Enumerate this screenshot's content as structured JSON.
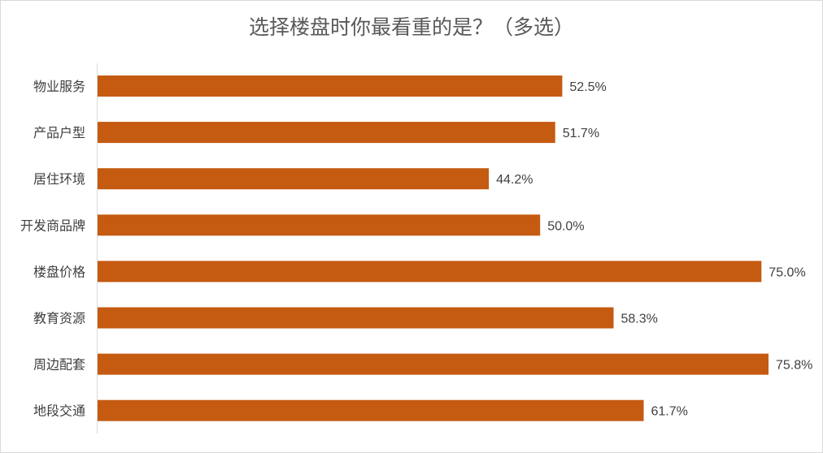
{
  "chart_data": {
    "type": "bar",
    "orientation": "horizontal",
    "title": "选择楼盘时你最看重的是？（多选）",
    "categories": [
      "物业服务",
      "产品户型",
      "居住环境",
      "开发商品牌",
      "楼盘价格",
      "教育资源",
      "周边配套",
      "地段交通"
    ],
    "values": [
      52.5,
      51.7,
      44.2,
      50.0,
      75.0,
      58.3,
      75.8,
      61.7
    ],
    "value_labels": [
      "52.5%",
      "51.7%",
      "44.2%",
      "50.0%",
      "75.0%",
      "58.3%",
      "75.8%",
      "61.7%"
    ],
    "xlim": [
      0,
      75.8
    ],
    "grid": false,
    "legend": "none",
    "bar_color": "#c55a11"
  }
}
